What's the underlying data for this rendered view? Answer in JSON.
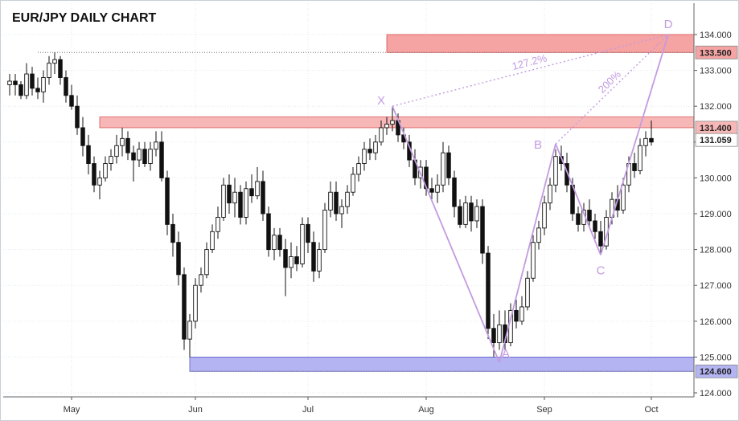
{
  "chart_data": {
    "type": "candlestick",
    "title": "EUR/JPY DAILY CHART",
    "ylim": [
      123.9,
      134.5
    ],
    "yticks": [
      "124.000",
      "125.000",
      "126.000",
      "127.000",
      "128.000",
      "129.000",
      "130.000",
      "131.000",
      "132.000",
      "133.000",
      "134.000"
    ],
    "xticks": [
      {
        "label": "May",
        "x": 0
      },
      {
        "label": "Jun",
        "x": 22
      },
      {
        "label": "Jul",
        "x": 42
      },
      {
        "label": "Aug",
        "x": 63
      },
      {
        "label": "Sep",
        "x": 84
      },
      {
        "label": "Oct",
        "x": 103
      }
    ],
    "grid": true,
    "candles": [
      [
        -11,
        132.6,
        132.9,
        132.3,
        132.7
      ],
      [
        -10,
        132.7,
        132.9,
        132.3,
        132.6
      ],
      [
        -9,
        132.6,
        132.7,
        132.2,
        132.3
      ],
      [
        -8,
        132.3,
        133.2,
        132.2,
        132.9
      ],
      [
        -7,
        132.9,
        133.1,
        132.3,
        132.5
      ],
      [
        -6,
        132.5,
        132.8,
        132.2,
        132.4
      ],
      [
        -5,
        132.4,
        133.0,
        132.1,
        132.8
      ],
      [
        -4,
        132.8,
        133.4,
        132.6,
        133.2
      ],
      [
        -3,
        133.2,
        133.5,
        132.9,
        133.3
      ],
      [
        -2,
        133.3,
        133.4,
        132.6,
        132.8
      ],
      [
        -1,
        132.8,
        133.0,
        132.1,
        132.3
      ],
      [
        0,
        132.3,
        132.6,
        131.9,
        132.0
      ],
      [
        1,
        132.0,
        132.3,
        131.2,
        131.4
      ],
      [
        2,
        131.4,
        131.7,
        130.6,
        130.9
      ],
      [
        3,
        130.9,
        131.2,
        130.1,
        130.4
      ],
      [
        4,
        130.4,
        130.6,
        129.6,
        129.8
      ],
      [
        5,
        129.8,
        130.2,
        129.4,
        130.0
      ],
      [
        6,
        130.0,
        130.6,
        129.9,
        130.4
      ],
      [
        7,
        130.4,
        130.8,
        130.2,
        130.6
      ],
      [
        8,
        130.6,
        131.2,
        130.4,
        130.9
      ],
      [
        9,
        130.9,
        131.4,
        130.6,
        131.1
      ],
      [
        10,
        131.1,
        131.3,
        130.5,
        130.7
      ],
      [
        11,
        130.7,
        130.9,
        129.9,
        130.5
      ],
      [
        12,
        130.5,
        131.0,
        130.3,
        130.8
      ],
      [
        13,
        130.8,
        131.0,
        130.3,
        130.4
      ],
      [
        14,
        130.4,
        131.0,
        130.2,
        130.8
      ],
      [
        15,
        130.8,
        131.3,
        130.6,
        131.0
      ],
      [
        16,
        131.0,
        131.3,
        129.9,
        130.0
      ],
      [
        17,
        130.0,
        130.2,
        128.4,
        128.7
      ],
      [
        18,
        128.7,
        129.0,
        127.8,
        128.2
      ],
      [
        19,
        128.2,
        128.5,
        127.0,
        127.3
      ],
      [
        20,
        127.3,
        127.5,
        125.2,
        125.5
      ],
      [
        21,
        125.5,
        126.2,
        125.0,
        126.0
      ],
      [
        22,
        126.0,
        127.2,
        125.8,
        127.0
      ],
      [
        23,
        127.0,
        127.5,
        126.8,
        127.3
      ],
      [
        24,
        127.3,
        128.2,
        127.2,
        128.0
      ],
      [
        25,
        128.0,
        128.7,
        127.9,
        128.5
      ],
      [
        26,
        128.5,
        129.2,
        128.3,
        128.9
      ],
      [
        27,
        128.9,
        130.0,
        128.8,
        129.8
      ],
      [
        28,
        129.8,
        130.1,
        129.0,
        129.3
      ],
      [
        29,
        129.3,
        130.0,
        128.9,
        129.6
      ],
      [
        30,
        129.6,
        129.8,
        128.7,
        128.9
      ],
      [
        31,
        128.9,
        129.9,
        128.7,
        129.7
      ],
      [
        32,
        129.7,
        130.1,
        129.3,
        129.5
      ],
      [
        33,
        129.5,
        130.3,
        129.4,
        129.9
      ],
      [
        34,
        129.9,
        130.2,
        128.8,
        129.0
      ],
      [
        35,
        129.0,
        129.2,
        127.8,
        128.0
      ],
      [
        36,
        128.0,
        128.6,
        127.7,
        128.4
      ],
      [
        37,
        128.4,
        128.6,
        127.8,
        128.0
      ],
      [
        38,
        128.0,
        128.3,
        126.7,
        127.5
      ],
      [
        39,
        127.5,
        128.2,
        127.2,
        127.8
      ],
      [
        40,
        127.8,
        128.1,
        127.4,
        127.6
      ],
      [
        41,
        127.6,
        128.9,
        127.5,
        128.7
      ],
      [
        42,
        128.7,
        128.9,
        127.9,
        128.2
      ],
      [
        43,
        128.2,
        128.5,
        127.1,
        127.4
      ],
      [
        44,
        127.4,
        128.2,
        127.2,
        128.0
      ],
      [
        45,
        128.0,
        129.3,
        127.9,
        129.1
      ],
      [
        46,
        129.1,
        129.9,
        128.9,
        129.6
      ],
      [
        47,
        129.6,
        129.9,
        128.8,
        129.0
      ],
      [
        48,
        129.0,
        129.4,
        128.6,
        129.2
      ],
      [
        49,
        129.2,
        129.8,
        129.0,
        129.6
      ],
      [
        50,
        129.6,
        130.3,
        129.5,
        130.1
      ],
      [
        51,
        130.1,
        130.6,
        129.9,
        130.4
      ],
      [
        52,
        130.4,
        131.0,
        130.2,
        130.8
      ],
      [
        53,
        130.8,
        131.1,
        130.5,
        130.7
      ],
      [
        54,
        130.7,
        131.2,
        130.5,
        131.0
      ],
      [
        55,
        131.0,
        131.6,
        130.9,
        131.4
      ],
      [
        56,
        131.4,
        131.7,
        131.2,
        131.5
      ],
      [
        57,
        131.5,
        132.0,
        131.3,
        131.6
      ],
      [
        58,
        131.6,
        131.8,
        131.0,
        131.2
      ],
      [
        59,
        131.2,
        131.4,
        130.8,
        131.0
      ],
      [
        60,
        131.0,
        131.2,
        130.3,
        130.5
      ],
      [
        61,
        130.5,
        130.8,
        129.8,
        130.0
      ],
      [
        62,
        130.0,
        130.5,
        129.7,
        130.3
      ],
      [
        63,
        130.3,
        130.5,
        129.5,
        129.7
      ],
      [
        64,
        129.7,
        130.0,
        129.4,
        129.6
      ],
      [
        65,
        129.6,
        130.1,
        129.3,
        129.8
      ],
      [
        66,
        129.8,
        131.0,
        129.6,
        130.7
      ],
      [
        67,
        130.7,
        130.9,
        129.8,
        130.0
      ],
      [
        68,
        130.0,
        130.2,
        128.9,
        129.2
      ],
      [
        69,
        129.2,
        129.4,
        128.6,
        128.7
      ],
      [
        70,
        128.7,
        129.5,
        128.6,
        129.3
      ],
      [
        71,
        129.3,
        129.5,
        128.5,
        128.8
      ],
      [
        72,
        128.8,
        129.4,
        128.6,
        129.2
      ],
      [
        73,
        129.2,
        129.4,
        127.6,
        127.9
      ],
      [
        74,
        127.9,
        128.1,
        125.5,
        125.8
      ],
      [
        75,
        125.8,
        126.2,
        125.0,
        125.4
      ],
      [
        76,
        125.4,
        126.3,
        125.2,
        125.9
      ],
      [
        77,
        125.9,
        126.3,
        125.2,
        125.4
      ],
      [
        78,
        125.4,
        126.5,
        125.3,
        126.3
      ],
      [
        79,
        126.3,
        126.6,
        125.8,
        126.0
      ],
      [
        80,
        126.0,
        126.7,
        125.9,
        126.4
      ],
      [
        81,
        126.4,
        127.4,
        126.3,
        127.2
      ],
      [
        82,
        127.2,
        128.4,
        127.1,
        128.2
      ],
      [
        83,
        128.2,
        128.8,
        128.0,
        128.6
      ],
      [
        84,
        128.6,
        129.5,
        128.4,
        129.3
      ],
      [
        85,
        129.3,
        130.0,
        129.1,
        129.8
      ],
      [
        86,
        129.8,
        130.8,
        129.6,
        130.6
      ],
      [
        87,
        130.6,
        130.9,
        130.2,
        130.4
      ],
      [
        88,
        130.4,
        130.7,
        129.6,
        129.8
      ],
      [
        89,
        129.8,
        130.0,
        128.8,
        129.0
      ],
      [
        90,
        129.0,
        129.2,
        128.5,
        128.7
      ],
      [
        91,
        128.7,
        129.3,
        128.5,
        129.1
      ],
      [
        92,
        129.1,
        129.4,
        128.6,
        128.8
      ],
      [
        93,
        128.8,
        129.0,
        128.3,
        128.5
      ],
      [
        94,
        128.5,
        128.8,
        127.9,
        128.1
      ],
      [
        95,
        128.1,
        129.1,
        128.0,
        128.9
      ],
      [
        96,
        128.9,
        129.6,
        128.7,
        129.4
      ],
      [
        97,
        129.4,
        129.8,
        128.9,
        129.1
      ],
      [
        98,
        129.1,
        130.0,
        129.0,
        129.8
      ],
      [
        99,
        129.8,
        130.6,
        129.6,
        130.4
      ],
      [
        100,
        130.4,
        130.7,
        130.0,
        130.2
      ],
      [
        101,
        130.2,
        131.1,
        130.1,
        130.9
      ],
      [
        102,
        130.9,
        131.3,
        130.6,
        131.1
      ],
      [
        103,
        131.1,
        131.6,
        130.9,
        131.0
      ]
    ],
    "zones": [
      {
        "name": "resistance-zone-133",
        "from": 133.5,
        "to": 134.0,
        "x_start": 56,
        "color": "#f5a3a3",
        "border": "#d9534f"
      },
      {
        "name": "resistance-zone-131",
        "from": 131.4,
        "to": 131.7,
        "x_start": 5,
        "color": "#f8b7b7",
        "border": "#d9534f"
      },
      {
        "name": "support-zone-125",
        "from": 124.6,
        "to": 125.0,
        "x_start": 21,
        "color": "#b4b4f3",
        "border": "#5a5ac8"
      }
    ],
    "hlines": [
      {
        "value": 133.5,
        "x_start": -6,
        "style": "dotted",
        "color": "#777777"
      },
      {
        "value": 124.6,
        "x_start": 21,
        "style": "dotted",
        "color": "#777777"
      }
    ],
    "pattern": {
      "color": "#c39be0",
      "points": [
        {
          "label": "X",
          "x": 57,
          "y": 132.0
        },
        {
          "label": "A",
          "x": 76,
          "y": 124.85
        },
        {
          "label": "B",
          "x": 86,
          "y": 130.95
        },
        {
          "label": "C",
          "x": 94,
          "y": 127.85
        },
        {
          "label": "D",
          "x": 106,
          "y": 134.0
        }
      ],
      "ratios": [
        {
          "text": "127.2%",
          "from": "X",
          "to": "D"
        },
        {
          "text": "200%",
          "from": "B",
          "to": "D"
        }
      ]
    },
    "price_tags": [
      {
        "text": "133.500",
        "value": 133.5,
        "bg": "#f5a3a3"
      },
      {
        "text": "131.400",
        "value": 131.4,
        "bg": "#f8b7b7"
      },
      {
        "text": "131.059",
        "value": 131.059,
        "bg": "#ffffff"
      },
      {
        "text": "124.600",
        "value": 124.6,
        "bg": "#b4b4f3"
      }
    ]
  }
}
